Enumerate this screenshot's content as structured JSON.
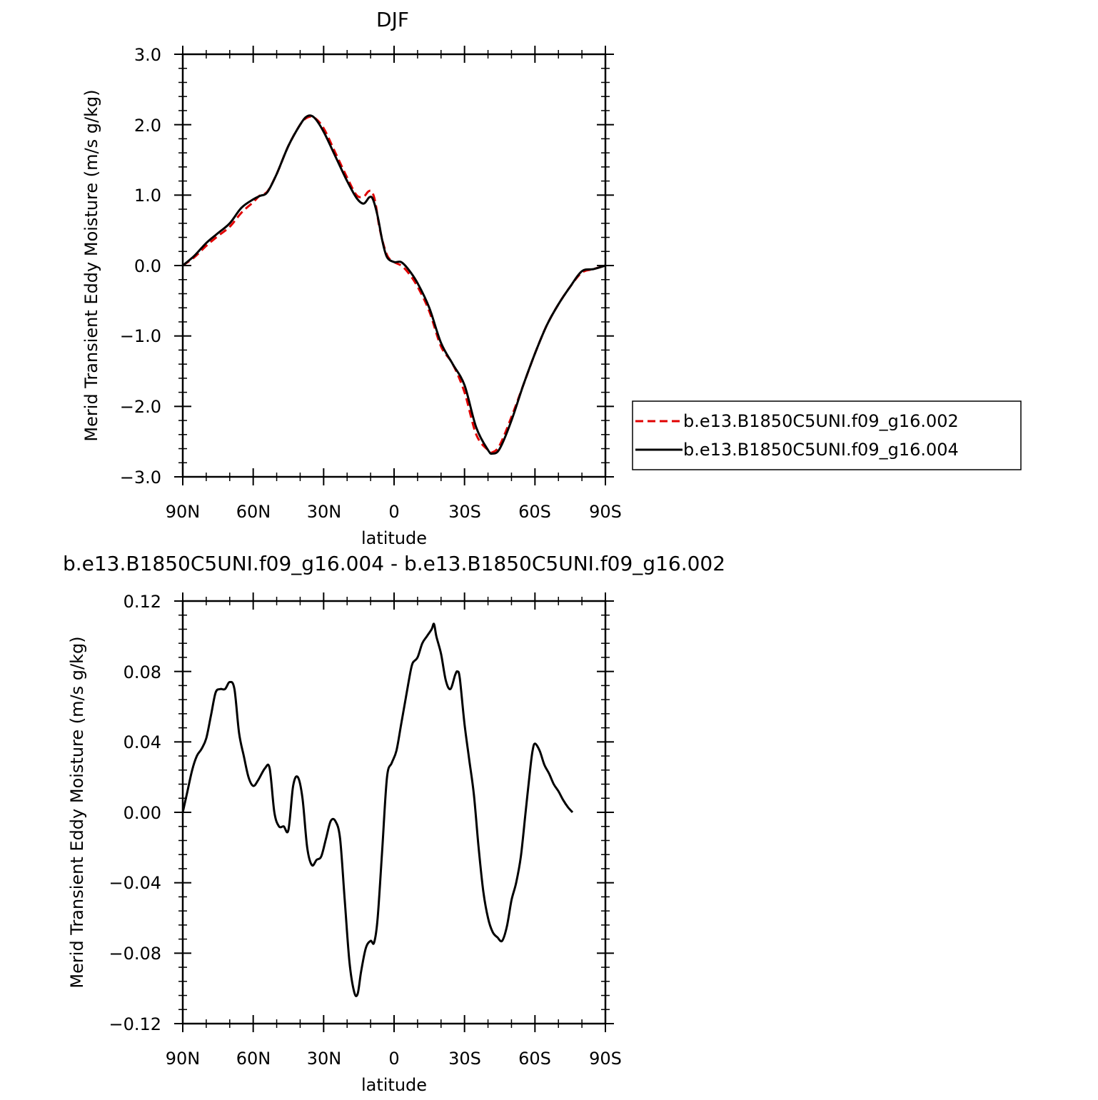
{
  "chart_data": [
    {
      "type": "line",
      "title": "DJF",
      "xlabel": "latitude",
      "ylabel": "Merid Transient Eddy Moisture (m/s g/kg)",
      "x_ticks": [
        "90N",
        "60N",
        "30N",
        "0",
        "30S",
        "60S",
        "90S"
      ],
      "y_ticks": [
        "−3.0",
        "−2.0",
        "−1.0",
        "0.0",
        "1.0",
        "2.0",
        "3.0"
      ],
      "xlim": [
        90,
        -90
      ],
      "ylim": [
        -3.0,
        3.0
      ],
      "legend_position": "right",
      "series": [
        {
          "name": "b.e13.B1850C5UNI.f09_g16.002",
          "color": "#e00000",
          "dash": "dashed",
          "points": [
            [
              90,
              0.0
            ],
            [
              85,
              0.12
            ],
            [
              80,
              0.28
            ],
            [
              75,
              0.42
            ],
            [
              70,
              0.55
            ],
            [
              65,
              0.75
            ],
            [
              60,
              0.9
            ],
            [
              57,
              1.0
            ],
            [
              54,
              1.05
            ],
            [
              50,
              1.3
            ],
            [
              45,
              1.7
            ],
            [
              40,
              2.0
            ],
            [
              37,
              2.1
            ],
            [
              34,
              2.1
            ],
            [
              30,
              1.95
            ],
            [
              25,
              1.6
            ],
            [
              20,
              1.25
            ],
            [
              16,
              1.0
            ],
            [
              13,
              0.98
            ],
            [
              11,
              1.05
            ],
            [
              9.5,
              1.05
            ],
            [
              8,
              0.9
            ],
            [
              6,
              0.5
            ],
            [
              3,
              0.15
            ],
            [
              0,
              0.05
            ],
            [
              -3,
              0.0
            ],
            [
              -6,
              -0.1
            ],
            [
              -10,
              -0.3
            ],
            [
              -15,
              -0.65
            ],
            [
              -20,
              -1.15
            ],
            [
              -25,
              -1.4
            ],
            [
              -30,
              -1.8
            ],
            [
              -35,
              -2.4
            ],
            [
              -40,
              -2.62
            ],
            [
              -42,
              -2.65
            ],
            [
              -45,
              -2.55
            ],
            [
              -50,
              -2.15
            ],
            [
              -55,
              -1.7
            ],
            [
              -60,
              -1.25
            ],
            [
              -65,
              -0.85
            ],
            [
              -70,
              -0.55
            ],
            [
              -75,
              -0.3
            ],
            [
              -80,
              -0.1
            ],
            [
              -85,
              -0.05
            ],
            [
              -90,
              0.0
            ]
          ]
        },
        {
          "name": "b.e13.B1850C5UNI.f09_g16.004",
          "color": "#000000",
          "dash": "solid",
          "points": [
            [
              90,
              0.0
            ],
            [
              85,
              0.14
            ],
            [
              80,
              0.32
            ],
            [
              75,
              0.46
            ],
            [
              70,
              0.6
            ],
            [
              65,
              0.82
            ],
            [
              60,
              0.94
            ],
            [
              57,
              0.99
            ],
            [
              54,
              1.04
            ],
            [
              50,
              1.3
            ],
            [
              45,
              1.7
            ],
            [
              40,
              2.0
            ],
            [
              37,
              2.12
            ],
            [
              34,
              2.1
            ],
            [
              30,
              1.9
            ],
            [
              25,
              1.55
            ],
            [
              20,
              1.2
            ],
            [
              16,
              0.96
            ],
            [
              13,
              0.88
            ],
            [
              10.5,
              0.97
            ],
            [
              9,
              0.94
            ],
            [
              7,
              0.7
            ],
            [
              5,
              0.35
            ],
            [
              3,
              0.12
            ],
            [
              0,
              0.05
            ],
            [
              -3,
              0.05
            ],
            [
              -6,
              -0.05
            ],
            [
              -10,
              -0.25
            ],
            [
              -15,
              -0.6
            ],
            [
              -20,
              -1.1
            ],
            [
              -25,
              -1.4
            ],
            [
              -30,
              -1.7
            ],
            [
              -35,
              -2.3
            ],
            [
              -40,
              -2.62
            ],
            [
              -42,
              -2.67
            ],
            [
              -45,
              -2.6
            ],
            [
              -50,
              -2.2
            ],
            [
              -55,
              -1.7
            ],
            [
              -60,
              -1.25
            ],
            [
              -65,
              -0.85
            ],
            [
              -70,
              -0.55
            ],
            [
              -75,
              -0.3
            ],
            [
              -80,
              -0.08
            ],
            [
              -85,
              -0.05
            ],
            [
              -90,
              0.0
            ]
          ]
        }
      ]
    },
    {
      "type": "line",
      "title": "b.e13.B1850C5UNI.f09_g16.004 - b.e13.B1850C5UNI.f09_g16.002",
      "xlabel": "latitude",
      "ylabel": "Merid Transient Eddy Moisture (m/s g/kg)",
      "x_ticks": [
        "90N",
        "60N",
        "30N",
        "0",
        "30S",
        "60S",
        "90S"
      ],
      "y_ticks": [
        "−0.12",
        "−0.08",
        "−0.04",
        "0.00",
        "0.04",
        "0.08",
        "0.12"
      ],
      "xlim": [
        90,
        -90
      ],
      "ylim": [
        -0.12,
        0.12
      ],
      "series": [
        {
          "color": "#000000",
          "dash": "solid",
          "points": [
            [
              90,
              0.0
            ],
            [
              88,
              0.012
            ],
            [
              86,
              0.024
            ],
            [
              84,
              0.032
            ],
            [
              82,
              0.036
            ],
            [
              80,
              0.042
            ],
            [
              78,
              0.055
            ],
            [
              76,
              0.068
            ],
            [
              74,
              0.07
            ],
            [
              72,
              0.07
            ],
            [
              70,
              0.074
            ],
            [
              68,
              0.07
            ],
            [
              66,
              0.045
            ],
            [
              64,
              0.032
            ],
            [
              62,
              0.02
            ],
            [
              60,
              0.015
            ],
            [
              58,
              0.018
            ],
            [
              55,
              0.025
            ],
            [
              53,
              0.025
            ],
            [
              51,
              0.0
            ],
            [
              49,
              -0.008
            ],
            [
              47,
              -0.008
            ],
            [
              45,
              -0.01
            ],
            [
              43,
              0.015
            ],
            [
              41,
              0.02
            ],
            [
              39,
              0.008
            ],
            [
              37,
              -0.02
            ],
            [
              35,
              -0.03
            ],
            [
              33,
              -0.027
            ],
            [
              31,
              -0.025
            ],
            [
              29,
              -0.015
            ],
            [
              27,
              -0.005
            ],
            [
              25,
              -0.005
            ],
            [
              23,
              -0.015
            ],
            [
              21,
              -0.05
            ],
            [
              19,
              -0.085
            ],
            [
              17,
              -0.102
            ],
            [
              15.5,
              -0.103
            ],
            [
              14,
              -0.09
            ],
            [
              12,
              -0.077
            ],
            [
              10,
              -0.073
            ],
            [
              8.5,
              -0.074
            ],
            [
              7,
              -0.06
            ],
            [
              5,
              -0.02
            ],
            [
              3,
              0.02
            ],
            [
              1,
              0.028
            ],
            [
              -1,
              0.035
            ],
            [
              -3,
              0.05
            ],
            [
              -5,
              0.065
            ],
            [
              -7,
              0.08
            ],
            [
              -8,
              0.085
            ],
            [
              -10,
              0.088
            ],
            [
              -12,
              0.096
            ],
            [
              -14,
              0.1
            ],
            [
              -16,
              0.104
            ],
            [
              -17,
              0.107
            ],
            [
              -18,
              0.1
            ],
            [
              -20,
              0.09
            ],
            [
              -22,
              0.075
            ],
            [
              -24,
              0.07
            ],
            [
              -26,
              0.078
            ],
            [
              -27,
              0.08
            ],
            [
              -28,
              0.076
            ],
            [
              -30,
              0.05
            ],
            [
              -32,
              0.03
            ],
            [
              -34,
              0.01
            ],
            [
              -36,
              -0.02
            ],
            [
              -38,
              -0.045
            ],
            [
              -40,
              -0.06
            ],
            [
              -42,
              -0.068
            ],
            [
              -44,
              -0.071
            ],
            [
              -46,
              -0.073
            ],
            [
              -48,
              -0.065
            ],
            [
              -50,
              -0.05
            ],
            [
              -52,
              -0.04
            ],
            [
              -54,
              -0.025
            ],
            [
              -56,
              0.0
            ],
            [
              -58,
              0.025
            ],
            [
              -59,
              0.035
            ],
            [
              -60,
              0.039
            ],
            [
              -62,
              0.035
            ],
            [
              -64,
              0.027
            ],
            [
              -66,
              0.022
            ],
            [
              -68,
              0.016
            ],
            [
              -70,
              0.012
            ],
            [
              -72,
              0.007
            ],
            [
              -74,
              0.003
            ],
            [
              -76,
              0.0
            ]
          ]
        }
      ]
    }
  ]
}
